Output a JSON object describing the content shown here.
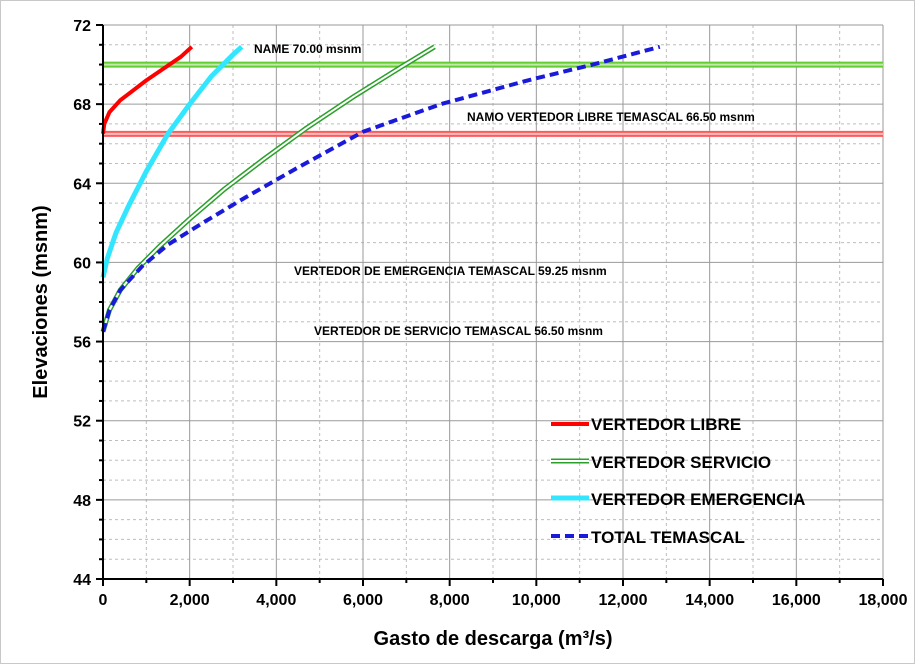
{
  "chart_data": {
    "type": "line",
    "title": "",
    "xlabel": "Gasto de descarga (m³/s)",
    "ylabel": "Elevaciones (msnm)",
    "xlim": [
      0,
      18000
    ],
    "ylim": [
      44,
      72
    ],
    "x_ticks": [
      "0",
      "2,000",
      "4,000",
      "6,000",
      "8,000",
      "10,000",
      "12,000",
      "14,000",
      "16,000",
      "18,000"
    ],
    "y_ticks": [
      "44",
      "48",
      "52",
      "56",
      "60",
      "64",
      "68",
      "72"
    ],
    "grid": true,
    "legend_position": "lower-right",
    "reference_lines": [
      {
        "label": "NAME 70.00 msnm",
        "y": 70.0,
        "color": "#66cc33"
      },
      {
        "label": "NAMO VERTEDOR LIBRE TEMASCAL 66.50 msnm",
        "y": 66.5,
        "color": "#ff5a5a"
      }
    ],
    "annotations": [
      {
        "text": "VERTEDOR DE EMERGENCIA TEMASCAL 59.25 msnm"
      },
      {
        "text": "VERTEDOR DE SERVICIO TEMASCAL 56.50 msnm"
      }
    ],
    "series": [
      {
        "name": "VERTEDOR LIBRE",
        "color": "#ff0000",
        "x": [
          0,
          30,
          150,
          400,
          700,
          1000,
          1400,
          1800,
          2050
        ],
        "y": [
          66.5,
          67.0,
          67.6,
          68.2,
          68.7,
          69.2,
          69.8,
          70.4,
          70.9
        ]
      },
      {
        "name": "VERTEDOR SERVICIO",
        "color": "#2aa02a",
        "x": [
          0,
          150,
          400,
          800,
          1300,
          2000,
          2800,
          3700,
          4700,
          5800,
          6900,
          7650
        ],
        "y": [
          56.5,
          57.6,
          58.6,
          59.7,
          60.8,
          62.2,
          63.7,
          65.2,
          66.8,
          68.4,
          69.9,
          70.9
        ]
      },
      {
        "name": "VERTEDOR EMERGENCIA",
        "color": "#33e6ff",
        "x": [
          0,
          100,
          300,
          600,
          1000,
          1500,
          2000,
          2500,
          3000,
          3200
        ],
        "y": [
          59.25,
          60.2,
          61.5,
          62.9,
          64.6,
          66.5,
          68.0,
          69.4,
          70.5,
          70.9
        ]
      },
      {
        "name": "TOTAL TEMASCAL",
        "color": "#1a1adb",
        "x": [
          0,
          150,
          400,
          900,
          1500,
          2300,
          3300,
          4500,
          6000,
          7800,
          9800,
          11300,
          12850
        ],
        "y": [
          56.5,
          57.6,
          58.6,
          59.8,
          60.9,
          62.0,
          63.3,
          64.8,
          66.6,
          68.0,
          69.2,
          70.0,
          70.9
        ]
      }
    ]
  }
}
